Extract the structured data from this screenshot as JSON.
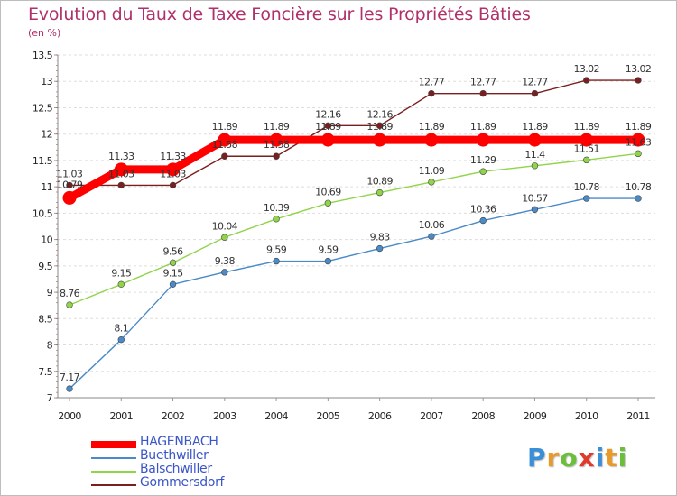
{
  "title": "Evolution du Taux de Taxe Foncière sur les Propriétés Bâties",
  "unit_label": "(en %)",
  "logo": {
    "text": "Proxiti",
    "letters": [
      {
        "ch": "P",
        "color": "#3a8fd6"
      },
      {
        "ch": "r",
        "color": "#e89a2a"
      },
      {
        "ch": "o",
        "color": "#6bbf3a"
      },
      {
        "ch": "x",
        "color": "#e23a2a"
      },
      {
        "ch": "i",
        "color": "#3a8fd6"
      },
      {
        "ch": "t",
        "color": "#e89a2a"
      },
      {
        "ch": "i",
        "color": "#6bbf3a"
      }
    ]
  },
  "chart_data": {
    "type": "line",
    "title": "Evolution du Taux de Taxe Foncière sur les Propriétés Bâties",
    "ylabel": "(en %)",
    "xlabel": "",
    "x": [
      "2000",
      "2001",
      "2002",
      "2003",
      "2004",
      "2005",
      "2006",
      "2007",
      "2008",
      "2009",
      "2010",
      "2011"
    ],
    "ylim": [
      7,
      13.5
    ],
    "yticks": [
      "7",
      "7.5",
      "8",
      "8.5",
      "9",
      "9.5",
      "10",
      "10.5",
      "11",
      "11.5",
      "12",
      "12.5",
      "13",
      "13.5"
    ],
    "grid": "horizontal",
    "legend_position": "bottom-left",
    "series": [
      {
        "name": "HAGENBACH",
        "color": "#ff0000",
        "emphasis": true,
        "values": [
          10.79,
          11.33,
          11.33,
          11.89,
          11.89,
          11.89,
          11.89,
          11.89,
          11.89,
          11.89,
          11.89,
          11.89
        ],
        "labels": [
          "10.79",
          "11.33",
          "11.33",
          "11.89",
          "11.89",
          "11.89",
          "11.89",
          "11.89",
          "11.89",
          "11.89",
          "11.89",
          "11.89"
        ]
      },
      {
        "name": "Buethwiller",
        "color": "#4a8ac8",
        "emphasis": false,
        "values": [
          7.17,
          8.1,
          9.15,
          9.38,
          9.59,
          9.59,
          9.83,
          10.06,
          10.36,
          10.57,
          10.78,
          10.78
        ],
        "labels": [
          "7.17",
          "8.1",
          "9.15",
          "9.38",
          "9.59",
          "9.59",
          "9.83",
          "10.06",
          "10.36",
          "10.57",
          "10.78",
          "10.78"
        ]
      },
      {
        "name": "Balschwiller",
        "color": "#90d44a",
        "emphasis": false,
        "values": [
          8.76,
          9.15,
          9.56,
          10.04,
          10.39,
          10.69,
          10.89,
          11.09,
          11.29,
          11.4,
          11.51,
          11.63
        ],
        "labels": [
          "8.76",
          "9.15",
          "9.56",
          "10.04",
          "10.39",
          "10.69",
          "10.89",
          "11.09",
          "11.29",
          "11.4",
          "11.51",
          "11.63"
        ]
      },
      {
        "name": "Gommersdorf",
        "color": "#7a1f1f",
        "emphasis": false,
        "values": [
          11.03,
          11.03,
          11.03,
          11.58,
          11.58,
          12.16,
          12.16,
          12.77,
          12.77,
          12.77,
          13.02,
          13.02
        ],
        "labels": [
          "11.03",
          "11.03",
          "11.03",
          "11.58",
          "11.58",
          "12.16",
          "12.16",
          "12.77",
          "12.77",
          "12.77",
          "13.02",
          "13.02"
        ]
      }
    ]
  }
}
